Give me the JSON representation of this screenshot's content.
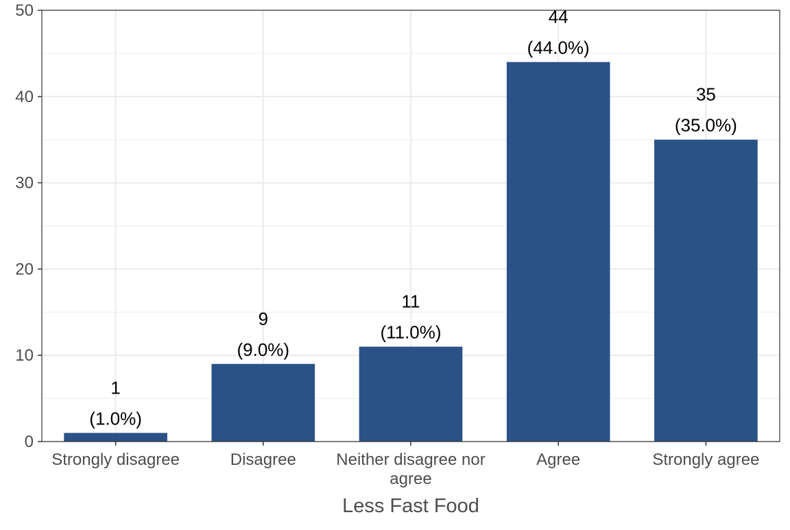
{
  "chart_data": {
    "type": "bar",
    "categories": [
      [
        "Strongly disagree"
      ],
      [
        "Disagree"
      ],
      [
        "Neither disagree nor",
        "agree"
      ],
      [
        "Agree"
      ],
      [
        "Strongly agree"
      ]
    ],
    "values": [
      1,
      9,
      11,
      44,
      35
    ],
    "value_labels": [
      "1",
      "9",
      "11",
      "44",
      "35"
    ],
    "percent_labels": [
      "(1.0%)",
      "(9.0%)",
      "(11.0%)",
      "(44.0%)",
      "(35.0%)"
    ],
    "xlabel": "Less Fast Food",
    "ylabel": "",
    "ylim": [
      0,
      50
    ],
    "yticks": [
      0,
      10,
      20,
      30,
      40,
      50
    ],
    "grid": true,
    "bar_color": "#2a5286"
  }
}
